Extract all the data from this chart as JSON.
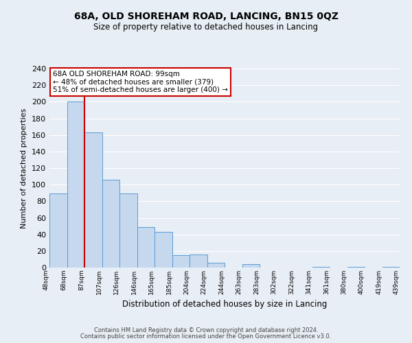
{
  "title": "68A, OLD SHOREHAM ROAD, LANCING, BN15 0QZ",
  "subtitle": "Size of property relative to detached houses in Lancing",
  "xlabel": "Distribution of detached houses by size in Lancing",
  "ylabel": "Number of detached properties",
  "bar_heights": [
    89,
    200,
    163,
    106,
    89,
    49,
    43,
    15,
    16,
    6,
    0,
    4,
    0,
    0,
    0,
    1,
    0,
    1,
    0,
    1
  ],
  "bin_labels": [
    "48sqm",
    "68sqm",
    "87sqm",
    "107sqm",
    "126sqm",
    "146sqm",
    "165sqm",
    "185sqm",
    "204sqm",
    "224sqm",
    "244sqm",
    "263sqm",
    "283sqm",
    "302sqm",
    "322sqm",
    "341sqm",
    "361sqm",
    "380sqm",
    "400sqm",
    "419sqm",
    "439sqm"
  ],
  "bar_color": "#c5d8ed",
  "bar_edge_color": "#5b9bd5",
  "background_color": "#e8eef5",
  "grid_color": "#ffffff",
  "property_line_x": 2,
  "annotation_line1": "68A OLD SHOREHAM ROAD: 99sqm",
  "annotation_line2": "← 48% of detached houses are smaller (379)",
  "annotation_line3": "51% of semi-detached houses are larger (400) →",
  "annotation_box_color": "#ffffff",
  "annotation_box_edge_color": "#cc0000",
  "red_line_color": "#cc0000",
  "ylim": [
    0,
    240
  ],
  "yticks": [
    0,
    20,
    40,
    60,
    80,
    100,
    120,
    140,
    160,
    180,
    200,
    220,
    240
  ],
  "footer1": "Contains HM Land Registry data © Crown copyright and database right 2024.",
  "footer2": "Contains public sector information licensed under the Open Government Licence v3.0."
}
